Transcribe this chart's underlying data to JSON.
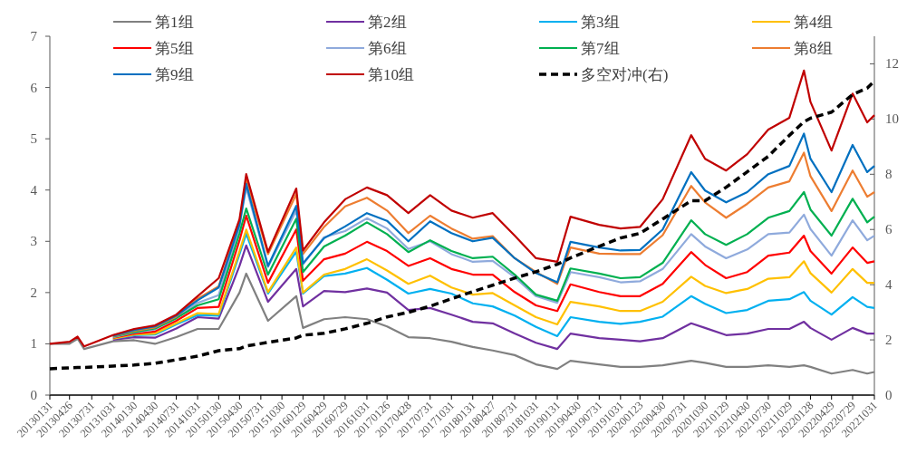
{
  "chart_data": {
    "type": "line",
    "x": [
      "2013-01-31",
      "2013-04-26",
      "2013-05-31",
      "2013-06-28",
      "2013-10-31",
      "2014-01-30",
      "2014-04-30",
      "2014-07-31",
      "2014-10-31",
      "2015-01-30",
      "2015-04-30",
      "2015-05-29",
      "2015-08-31",
      "2015-12-31",
      "2016-01-29",
      "2016-04-29",
      "2016-07-29",
      "2016-10-31",
      "2017-01-26",
      "2017-04-28",
      "2017-07-31",
      "2017-10-31",
      "2018-01-31",
      "2018-04-27",
      "2018-07-31",
      "2018-10-31",
      "2019-01-31",
      "2019-03-29",
      "2019-07-31",
      "2019-10-31",
      "2020-01-23",
      "2020-04-30",
      "2020-08-31",
      "2020-10-30",
      "2021-01-29",
      "2021-04-30",
      "2021-07-30",
      "2021-10-29",
      "2021-12-31",
      "2022-01-28",
      "2022-04-29",
      "2022-07-29",
      "2022-09-30",
      "2022-10-31"
    ],
    "series": [
      {
        "name": "第1组",
        "color": "#808080",
        "values": [
          1.0,
          1.0,
          1.1,
          0.9,
          1.05,
          1.07,
          1.0,
          1.13,
          1.29,
          1.29,
          2.0,
          2.37,
          1.45,
          1.93,
          1.31,
          1.48,
          1.52,
          1.48,
          1.34,
          1.13,
          1.11,
          1.04,
          0.94,
          0.87,
          0.78,
          0.6,
          0.51,
          0.67,
          0.6,
          0.55,
          0.55,
          0.58,
          0.67,
          0.63,
          0.55,
          0.55,
          0.58,
          0.55,
          0.58,
          0.55,
          0.42,
          0.49,
          0.42,
          0.45
        ]
      },
      {
        "name": "第2组",
        "color": "#7030a0",
        "values": [
          null,
          null,
          null,
          null,
          1.08,
          1.13,
          1.12,
          1.3,
          1.52,
          1.49,
          2.52,
          2.92,
          1.82,
          2.46,
          1.73,
          2.03,
          2.01,
          2.08,
          2.0,
          1.66,
          1.7,
          1.57,
          1.43,
          1.4,
          1.2,
          1.02,
          0.9,
          1.2,
          1.11,
          1.08,
          1.05,
          1.11,
          1.4,
          1.31,
          1.17,
          1.2,
          1.29,
          1.29,
          1.43,
          1.31,
          1.08,
          1.31,
          1.2,
          1.2
        ]
      },
      {
        "name": "第3组",
        "color": "#00b0f0",
        "values": [
          null,
          null,
          null,
          null,
          1.1,
          1.17,
          1.18,
          1.38,
          1.56,
          1.55,
          2.75,
          3.15,
          1.98,
          2.8,
          1.98,
          2.32,
          2.37,
          2.48,
          2.25,
          1.98,
          2.07,
          1.98,
          1.79,
          1.73,
          1.55,
          1.33,
          1.15,
          1.52,
          1.43,
          1.39,
          1.43,
          1.53,
          1.93,
          1.78,
          1.6,
          1.66,
          1.84,
          1.87,
          2.01,
          1.84,
          1.57,
          1.91,
          1.72,
          1.7
        ]
      },
      {
        "name": "第4组",
        "color": "#ffc000",
        "values": [
          null,
          null,
          null,
          null,
          1.1,
          1.18,
          1.2,
          1.4,
          1.6,
          1.58,
          2.81,
          3.23,
          2.01,
          2.88,
          2.0,
          2.35,
          2.46,
          2.65,
          2.43,
          2.17,
          2.33,
          2.1,
          1.96,
          1.99,
          1.75,
          1.52,
          1.38,
          1.82,
          1.73,
          1.64,
          1.64,
          1.82,
          2.31,
          2.13,
          1.99,
          2.07,
          2.27,
          2.3,
          2.61,
          2.38,
          2.0,
          2.46,
          2.19,
          2.19
        ]
      },
      {
        "name": "第5组",
        "color": "#ff0000",
        "values": [
          null,
          null,
          null,
          null,
          1.12,
          1.2,
          1.24,
          1.45,
          1.7,
          1.72,
          3.02,
          3.5,
          2.19,
          3.23,
          2.23,
          2.65,
          2.76,
          2.99,
          2.81,
          2.52,
          2.67,
          2.46,
          2.35,
          2.35,
          2.01,
          1.75,
          1.64,
          2.16,
          2.01,
          1.93,
          1.93,
          2.17,
          2.79,
          2.54,
          2.28,
          2.4,
          2.72,
          2.78,
          3.11,
          2.81,
          2.37,
          2.88,
          2.58,
          2.61
        ]
      },
      {
        "name": "第6组",
        "color": "#8faadc",
        "values": [
          null,
          null,
          null,
          null,
          1.13,
          1.22,
          1.28,
          1.5,
          1.8,
          1.95,
          3.3,
          4.05,
          2.5,
          3.6,
          2.55,
          3.08,
          3.2,
          3.45,
          3.25,
          2.85,
          3.0,
          2.75,
          2.6,
          2.62,
          2.3,
          1.93,
          1.8,
          2.4,
          2.3,
          2.2,
          2.22,
          2.46,
          3.14,
          2.9,
          2.67,
          2.84,
          3.14,
          3.17,
          3.52,
          3.24,
          2.72,
          3.41,
          3.02,
          3.11
        ]
      },
      {
        "name": "第7组",
        "color": "#00b050",
        "values": [
          null,
          null,
          null,
          null,
          1.14,
          1.23,
          1.3,
          1.5,
          1.75,
          1.87,
          3.16,
          3.64,
          2.35,
          3.44,
          2.4,
          2.9,
          3.11,
          3.37,
          3.14,
          2.79,
          3.02,
          2.81,
          2.67,
          2.7,
          2.35,
          1.96,
          1.84,
          2.47,
          2.37,
          2.28,
          2.3,
          2.58,
          3.41,
          3.14,
          2.93,
          3.14,
          3.46,
          3.59,
          3.96,
          3.62,
          3.11,
          3.83,
          3.37,
          3.48
        ]
      },
      {
        "name": "第8组",
        "color": "#ed7d31",
        "values": [
          null,
          null,
          null,
          null,
          1.15,
          1.25,
          1.32,
          1.53,
          1.88,
          2.12,
          3.38,
          4.2,
          2.75,
          3.92,
          2.75,
          3.28,
          3.68,
          3.85,
          3.6,
          3.16,
          3.5,
          3.25,
          3.05,
          3.1,
          2.67,
          2.4,
          2.17,
          2.88,
          2.76,
          2.75,
          2.75,
          3.12,
          4.08,
          3.76,
          3.46,
          3.73,
          4.05,
          4.17,
          4.73,
          4.27,
          3.59,
          4.38,
          3.87,
          3.96
        ]
      },
      {
        "name": "第9组",
        "color": "#0070c0",
        "values": [
          null,
          null,
          null,
          null,
          1.16,
          1.27,
          1.34,
          1.55,
          1.85,
          2.1,
          3.33,
          4.12,
          2.52,
          3.69,
          2.57,
          3.06,
          3.29,
          3.55,
          3.4,
          3.0,
          3.39,
          3.16,
          3.0,
          3.07,
          2.67,
          2.38,
          2.2,
          2.99,
          2.88,
          2.82,
          2.83,
          3.23,
          4.35,
          3.99,
          3.76,
          3.96,
          4.31,
          4.47,
          5.1,
          4.61,
          3.96,
          4.88,
          4.35,
          4.47
        ]
      },
      {
        "name": "第10组",
        "color": "#c00000",
        "values": [
          1.0,
          1.04,
          1.14,
          0.95,
          1.17,
          1.29,
          1.36,
          1.57,
          1.93,
          2.28,
          3.43,
          4.31,
          2.79,
          4.03,
          2.82,
          3.37,
          3.82,
          4.05,
          3.9,
          3.55,
          3.9,
          3.6,
          3.46,
          3.55,
          3.11,
          2.67,
          2.6,
          3.48,
          3.32,
          3.25,
          3.28,
          3.82,
          5.07,
          4.61,
          4.38,
          4.7,
          5.18,
          5.41,
          6.33,
          5.72,
          4.77,
          5.88,
          5.32,
          5.46
        ]
      },
      {
        "name": "多空对冲(右)",
        "color": "#000000",
        "axis": "y2",
        "line_style": "dashed",
        "values": [
          0.95,
          0.99,
          1.0,
          1.0,
          1.05,
          1.09,
          1.15,
          1.28,
          1.41,
          1.61,
          1.68,
          1.78,
          1.91,
          2.07,
          2.17,
          2.24,
          2.4,
          2.6,
          2.83,
          3.0,
          3.22,
          3.49,
          3.75,
          3.98,
          4.24,
          4.47,
          4.74,
          4.97,
          5.39,
          5.69,
          5.86,
          6.38,
          7.04,
          7.04,
          7.53,
          8.09,
          8.65,
          9.41,
          9.9,
          10.03,
          10.25,
          10.89,
          11.12,
          11.38
        ]
      }
    ],
    "xlim": [
      "2013-01-31",
      "2022-10-31"
    ],
    "xticks": [
      {
        "value": "2013-01-31",
        "label": "20130131"
      },
      {
        "value": "2013-04-26",
        "label": "20130426"
      },
      {
        "value": "2013-07-31",
        "label": "20130731"
      },
      {
        "value": "2013-10-31",
        "label": "20131031"
      },
      {
        "value": "2014-01-30",
        "label": "20140130"
      },
      {
        "value": "2014-04-30",
        "label": "20140430"
      },
      {
        "value": "2014-07-31",
        "label": "20140731"
      },
      {
        "value": "2014-10-31",
        "label": "20141031"
      },
      {
        "value": "2015-01-30",
        "label": "20150130"
      },
      {
        "value": "2015-04-30",
        "label": "20150430"
      },
      {
        "value": "2015-07-31",
        "label": "20150731"
      },
      {
        "value": "2015-10-30",
        "label": "20151030"
      },
      {
        "value": "2016-01-29",
        "label": "20160129"
      },
      {
        "value": "2016-04-29",
        "label": "20160429"
      },
      {
        "value": "2016-07-29",
        "label": "20160729"
      },
      {
        "value": "2016-10-31",
        "label": "20161031"
      },
      {
        "value": "2017-01-26",
        "label": "20170126"
      },
      {
        "value": "2017-04-28",
        "label": "20170428"
      },
      {
        "value": "2017-07-31",
        "label": "20170731"
      },
      {
        "value": "2017-10-31",
        "label": "20171031"
      },
      {
        "value": "2018-01-31",
        "label": "20180131"
      },
      {
        "value": "2018-04-27",
        "label": "20180427"
      },
      {
        "value": "2018-07-31",
        "label": "20180731"
      },
      {
        "value": "2018-10-31",
        "label": "20181031"
      },
      {
        "value": "2019-01-31",
        "label": "20190131"
      },
      {
        "value": "2019-04-30",
        "label": "20190430"
      },
      {
        "value": "2019-07-31",
        "label": "20190731"
      },
      {
        "value": "2019-10-31",
        "label": "20191031"
      },
      {
        "value": "2020-01-23",
        "label": "20200123"
      },
      {
        "value": "2020-04-30",
        "label": "20200430"
      },
      {
        "value": "2020-07-31",
        "label": "20200731"
      },
      {
        "value": "2020-10-30",
        "label": "20201030"
      },
      {
        "value": "2021-01-29",
        "label": "20210129"
      },
      {
        "value": "2021-04-30",
        "label": "20210430"
      },
      {
        "value": "2021-07-30",
        "label": "20210730"
      },
      {
        "value": "2021-10-29",
        "label": "20211029"
      },
      {
        "value": "2022-01-28",
        "label": "20220128"
      },
      {
        "value": "2022-04-29",
        "label": "20220429"
      },
      {
        "value": "2022-07-29",
        "label": "20220729"
      },
      {
        "value": "2022-10-31",
        "label": "20221031"
      }
    ],
    "ylim": [
      0,
      7
    ],
    "yticks": [
      0,
      1,
      2,
      3,
      4,
      5,
      6,
      7
    ],
    "y2lim": [
      0,
      13
    ],
    "y2ticks": [
      0,
      2,
      4,
      6,
      8,
      10,
      12
    ],
    "legend": "top",
    "grid": false
  }
}
